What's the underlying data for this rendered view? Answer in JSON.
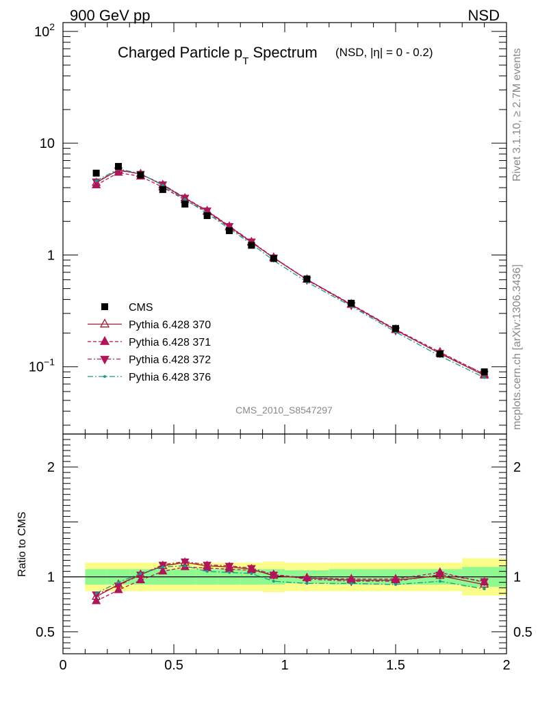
{
  "header": {
    "left": "900 GeV pp",
    "right": "NSD"
  },
  "title": {
    "main": "Charged Particle p",
    "sub": "T",
    "main2": " Spectrum",
    "detail": "(NSD, |η| =   0 - 0.2)"
  },
  "side": {
    "rivet": "Rivet 3.1.10, ≥ 2.7M events",
    "mcplots": "mcplots.cern.ch [arXiv:1306.3436]"
  },
  "analysis_label": "CMS_2010_S8547297",
  "ratio_ylabel": "Ratio to CMS",
  "colors": {
    "data": "#000000",
    "s370": "#9b1b30",
    "s371": "#b0155a",
    "s372": "#b0155a",
    "s376": "#1a9a8a",
    "band_green": "#90f890",
    "band_yellow": "#fbfd8a"
  },
  "chart_data": {
    "type": "line",
    "xlim": [
      0,
      2
    ],
    "top_ylim": [
      0.025,
      120
    ],
    "top_yscale": "log",
    "ratio_ylim": [
      0.3,
      2.3
    ],
    "x_ticks": [
      "0",
      "0.5",
      "1",
      "1.5",
      "2"
    ],
    "top_y_ticks": [
      "10^2",
      "10",
      "1",
      "10^-1"
    ],
    "ratio_y_ticks": [
      "0.5",
      "1",
      "2"
    ],
    "legend_placement": "left",
    "x": [
      0.15,
      0.25,
      0.35,
      0.45,
      0.55,
      0.65,
      0.75,
      0.85,
      0.95,
      1.1,
      1.3,
      1.5,
      1.7,
      1.9
    ],
    "bin_edges": [
      0.1,
      0.2,
      0.3,
      0.4,
      0.5,
      0.6,
      0.7,
      0.8,
      0.9,
      1.0,
      1.2,
      1.4,
      1.6,
      1.8,
      2.0
    ],
    "data": {
      "name": "CMS",
      "values": [
        5.4,
        6.2,
        5.2,
        3.85,
        2.85,
        2.25,
        1.65,
        1.22,
        0.93,
        0.61,
        0.37,
        0.22,
        0.13,
        0.09
      ],
      "band_green": [
        0.07,
        0.07,
        0.07,
        0.07,
        0.07,
        0.07,
        0.07,
        0.07,
        0.07,
        0.06,
        0.07,
        0.07,
        0.07,
        0.09
      ],
      "band_yellow": [
        0.13,
        0.13,
        0.13,
        0.13,
        0.13,
        0.13,
        0.13,
        0.13,
        0.14,
        0.13,
        0.13,
        0.13,
        0.13,
        0.17
      ]
    },
    "series": [
      {
        "name": "Pythia 6.428 370",
        "key": "s370",
        "marker": "open-triangle-up",
        "dash": "",
        "ratio": [
          0.82,
          0.93,
          1.02,
          1.1,
          1.13,
          1.1,
          1.09,
          1.07,
          1.01,
          0.99,
          0.97,
          0.97,
          1.01,
          0.93
        ]
      },
      {
        "name": "Pythia 6.428 371",
        "key": "s371",
        "marker": "filled-triangle-up",
        "dash": "5,3",
        "ratio": [
          0.78,
          0.88,
          0.97,
          1.05,
          1.09,
          1.08,
          1.07,
          1.06,
          1.02,
          0.99,
          0.98,
          0.98,
          1.04,
          0.95
        ]
      },
      {
        "name": "Pythia 6.428 372",
        "key": "s372",
        "marker": "filled-triangle-down",
        "dash": "6,3,2,3",
        "ratio": [
          0.84,
          0.92,
          1.02,
          1.11,
          1.14,
          1.11,
          1.1,
          1.08,
          1.02,
          0.98,
          0.96,
          0.96,
          1.02,
          0.96
        ]
      },
      {
        "name": "Pythia 6.428 376",
        "key": "s376",
        "marker": "small-dot",
        "dash": "8,3,2,3",
        "ratio": [
          0.85,
          0.95,
          1.03,
          1.09,
          1.1,
          1.05,
          1.04,
          1.03,
          0.96,
          0.94,
          0.94,
          0.93,
          0.96,
          0.89
        ]
      }
    ]
  }
}
